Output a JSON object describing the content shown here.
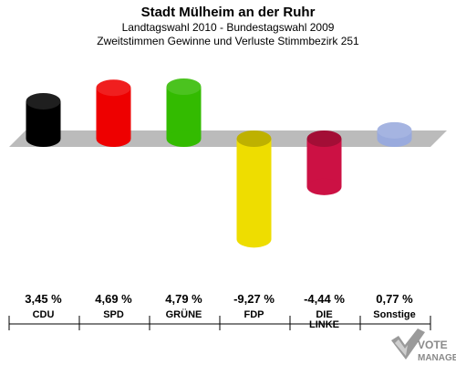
{
  "chart_data": {
    "type": "bar",
    "title": "Stadt Mülheim an der Ruhr",
    "subtitle": "Landtagswahl 2010 - Bundestagswahl 2009",
    "subtitle2": "Zweitstimmen Gewinne und Verluste Stimmbezirk 251",
    "categories": [
      "CDU",
      "SPD",
      "GRÜNE",
      "FDP",
      "DIE LINKE",
      "Sonstige"
    ],
    "category_lines": [
      [
        "CDU"
      ],
      [
        "SPD"
      ],
      [
        "GRÜNE"
      ],
      [
        "FDP"
      ],
      [
        "DIE",
        "LINKE"
      ],
      [
        "Sonstige"
      ]
    ],
    "values": [
      3.45,
      4.69,
      4.79,
      -9.27,
      -4.44,
      0.77
    ],
    "value_labels": [
      "3,45 %",
      "4,69 %",
      "4,79 %",
      "-9,27 %",
      "-4,44 %",
      "0,77 %"
    ],
    "colors": [
      "#000000",
      "#ee0000",
      "#33bb00",
      "#eedd00",
      "#cc1144",
      "#99aadd"
    ],
    "ylim": [
      -10,
      5
    ],
    "unit": "%",
    "baseline": "gray band at zero",
    "grid": false,
    "legend": "none"
  },
  "logo": {
    "text": "VOTE",
    "text2": "MANAGER"
  }
}
